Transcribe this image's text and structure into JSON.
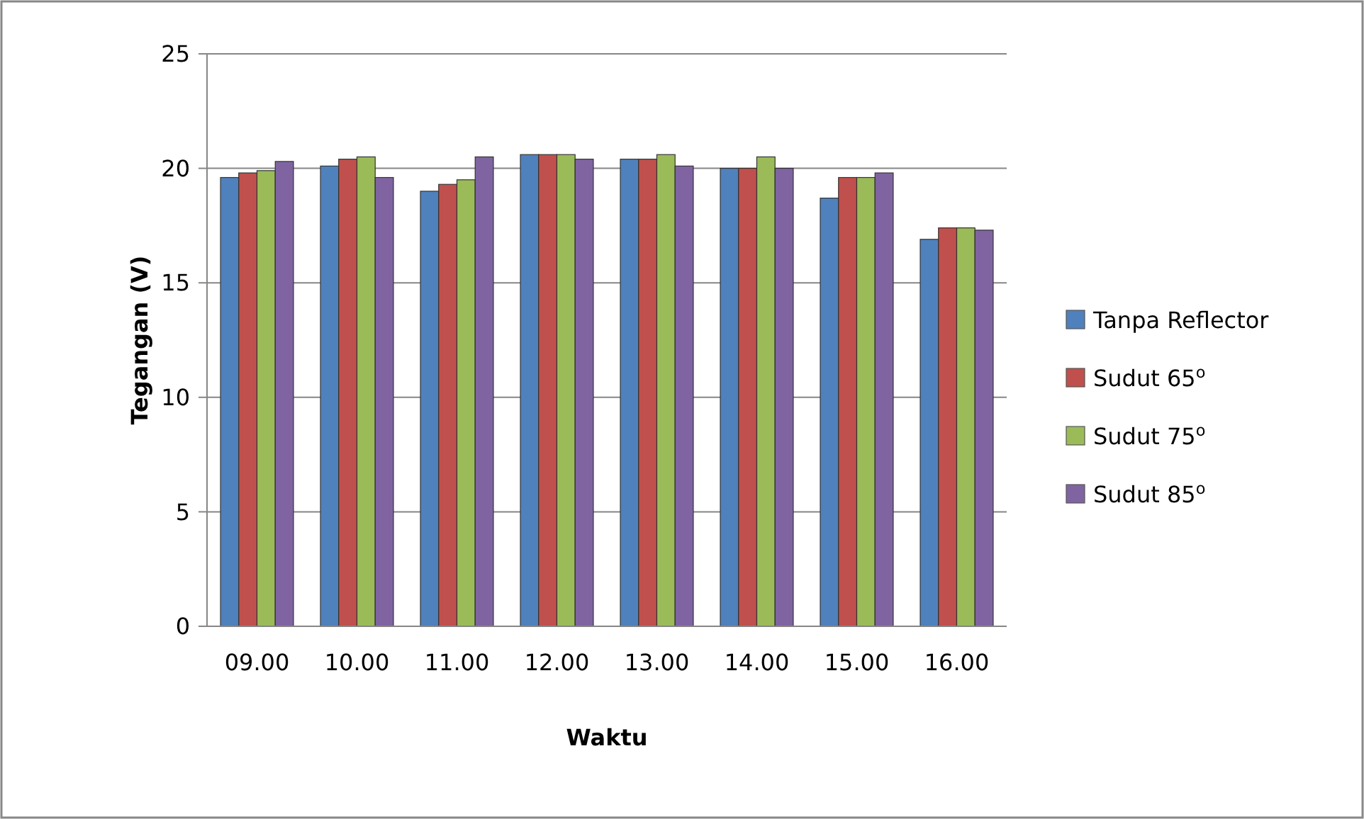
{
  "chart_data": {
    "type": "bar",
    "xlabel": "Waktu",
    "ylabel": "Tegangan (V)",
    "categories": [
      "09.00",
      "10.00",
      "11.00",
      "12.00",
      "13.00",
      "14.00",
      "15.00",
      "16.00"
    ],
    "series": [
      {
        "name": "Tanpa Reflector",
        "color": "#4f81bd",
        "values": [
          19.6,
          20.1,
          19.0,
          20.6,
          20.4,
          20.0,
          18.7,
          16.9
        ]
      },
      {
        "name": "Sudut 65$^{o}$",
        "color": "#c0504d",
        "values": [
          19.8,
          20.4,
          19.3,
          20.6,
          20.4,
          20.0,
          19.6,
          17.4
        ]
      },
      {
        "name": "Sudut 75$^{o}$",
        "color": "#9bbb59",
        "values": [
          19.9,
          20.5,
          19.5,
          20.6,
          20.6,
          20.5,
          19.6,
          17.4
        ]
      },
      {
        "name": "Sudut 85$^{o}$",
        "color": "#8064a2",
        "values": [
          20.3,
          19.6,
          20.5,
          20.4,
          20.1,
          20.0,
          19.8,
          17.3
        ]
      }
    ],
    "ylim": [
      0,
      25
    ],
    "yticks": [
      0,
      5,
      10,
      15,
      20,
      25
    ],
    "grid": "y",
    "legend": "right"
  }
}
